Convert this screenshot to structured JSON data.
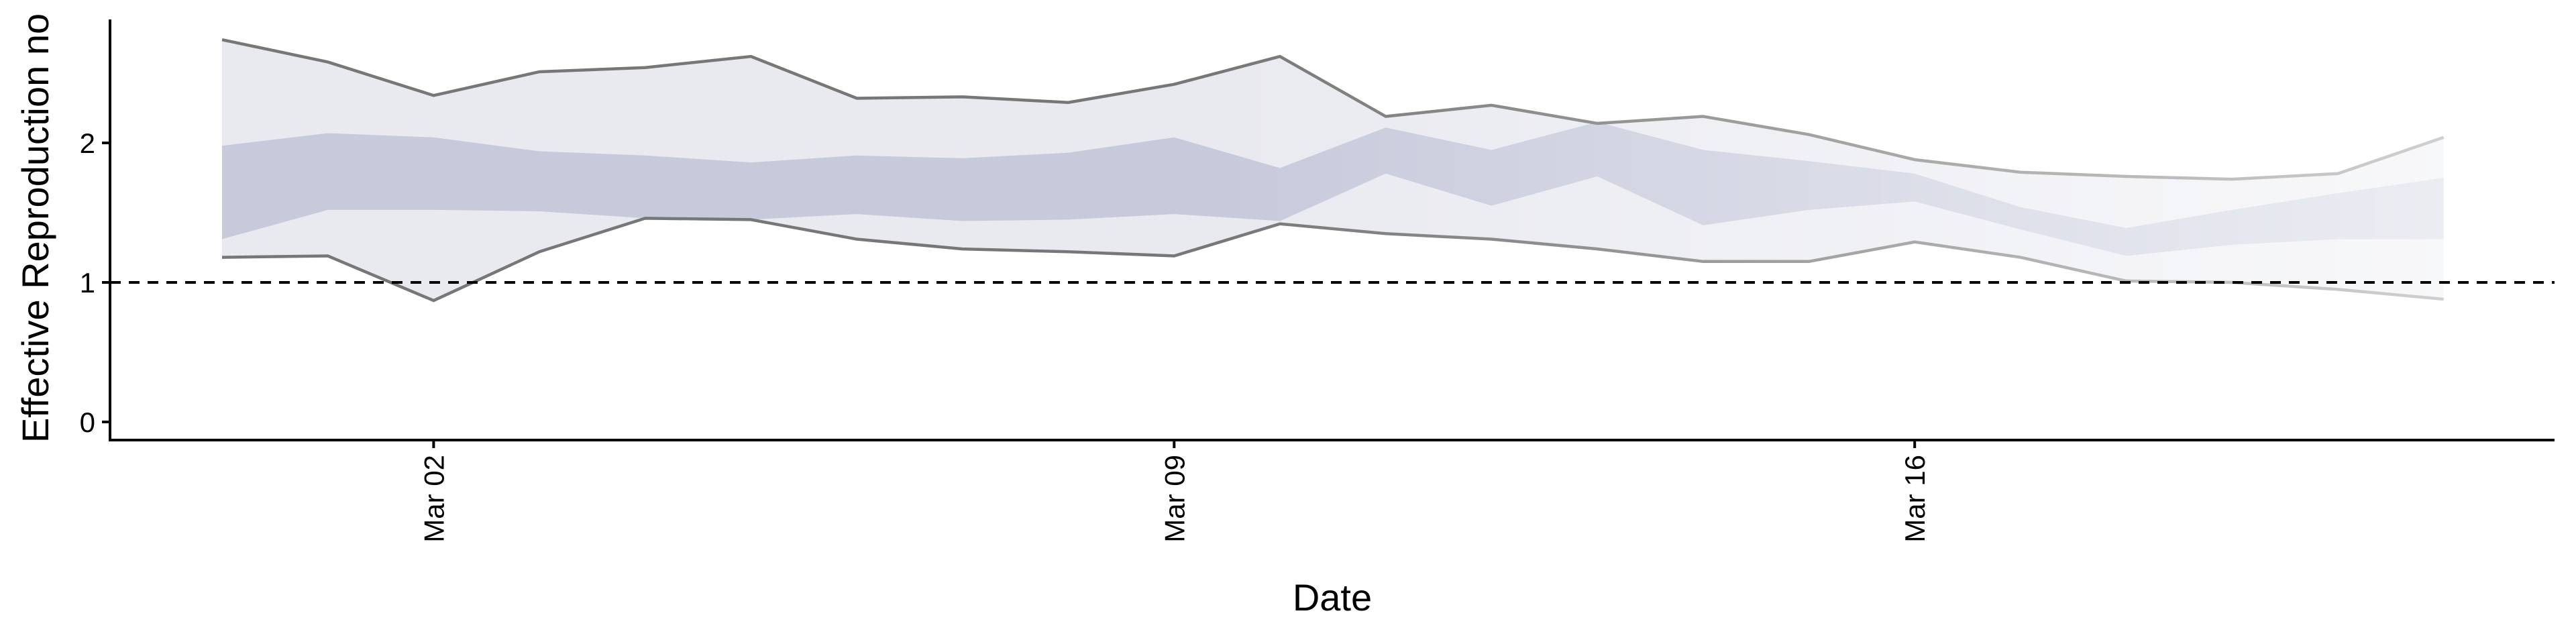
{
  "chart_data": {
    "type": "band",
    "xlabel": "Date",
    "ylabel": "Effective Reproduction no",
    "categories": [
      null,
      null,
      "Mar 02",
      null,
      null,
      null,
      null,
      null,
      null,
      "Mar 09",
      null,
      null,
      null,
      null,
      null,
      null,
      "Mar 16",
      null,
      null,
      null,
      null,
      null
    ],
    "bands": [
      {
        "color": "#e9eaf0",
        "line_color": "#777777",
        "upper": [
          2.74,
          2.58,
          2.34,
          2.51,
          2.54,
          2.62,
          2.32,
          2.33,
          2.29,
          2.42,
          2.62,
          2.19,
          2.27,
          2.14,
          2.19,
          2.06,
          1.88,
          1.79,
          1.76,
          1.74,
          1.78,
          2.04
        ],
        "lower": [
          1.18,
          1.19,
          0.87,
          1.22,
          1.46,
          1.45,
          1.31,
          1.24,
          1.22,
          1.19,
          1.42,
          1.35,
          1.31,
          1.24,
          1.15,
          1.15,
          1.29,
          1.18,
          1.01,
          1.0,
          0.95,
          0.88
        ]
      },
      {
        "color": "#c7cadb",
        "upper": [
          1.98,
          2.07,
          2.04,
          1.94,
          1.91,
          1.86,
          1.91,
          1.89,
          1.93,
          2.04,
          1.82,
          2.11,
          1.95,
          2.15,
          1.95,
          1.87,
          1.78,
          1.54,
          1.39,
          1.52,
          1.64,
          1.75
        ],
        "lower": [
          1.31,
          1.52,
          1.52,
          1.51,
          1.46,
          1.45,
          1.49,
          1.44,
          1.45,
          1.49,
          1.44,
          1.78,
          1.55,
          1.76,
          1.41,
          1.52,
          1.58,
          1.38,
          1.19,
          1.27,
          1.31,
          1.31
        ]
      }
    ],
    "reference_line": 1,
    "ylim": [
      -0.13,
      2.885
    ],
    "yticks": [
      0,
      1,
      2
    ]
  }
}
